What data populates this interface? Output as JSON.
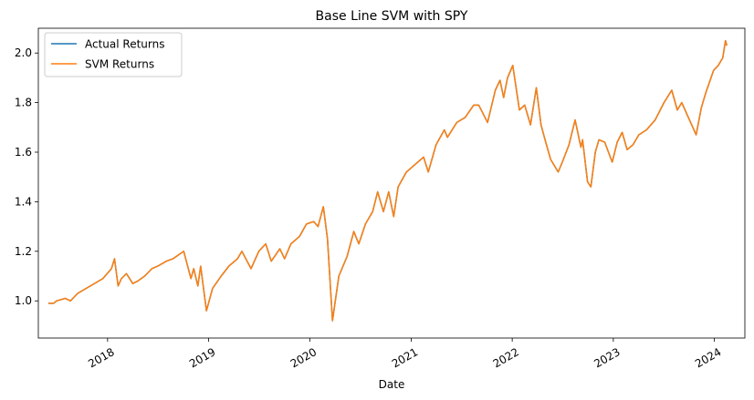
{
  "chart_data": {
    "type": "line",
    "title": "Base Line SVM with SPY",
    "xlabel": "Date",
    "ylabel": "",
    "xlim": [
      "2017-04-26",
      "2024-04-20"
    ],
    "ylim": [
      0.85,
      2.1
    ],
    "x_ticks": [
      {
        "date": "2018-01-01",
        "label": "2018"
      },
      {
        "date": "2019-01-01",
        "label": "2019"
      },
      {
        "date": "2020-01-01",
        "label": "2020"
      },
      {
        "date": "2021-01-01",
        "label": "2021"
      },
      {
        "date": "2022-01-01",
        "label": "2022"
      },
      {
        "date": "2023-01-01",
        "label": "2023"
      },
      {
        "date": "2024-01-01",
        "label": "2024"
      }
    ],
    "y_ticks": [
      {
        "value": 1.0,
        "label": "1.0"
      },
      {
        "value": 1.2,
        "label": "1.2"
      },
      {
        "value": 1.4,
        "label": "1.4"
      },
      {
        "value": 1.6,
        "label": "1.6"
      },
      {
        "value": 1.8,
        "label": "1.8"
      },
      {
        "value": 2.0,
        "label": "2.0"
      }
    ],
    "grid": false,
    "legend_position": "upper-left",
    "series": [
      {
        "name": "Actual Returns",
        "color": "#1f77b4",
        "x": [
          "2017-06-01",
          "2017-06-20",
          "2017-07-01",
          "2017-08-01",
          "2017-08-20",
          "2017-09-15",
          "2017-10-15",
          "2017-11-15",
          "2017-12-15",
          "2018-01-15",
          "2018-01-26",
          "2018-02-08",
          "2018-02-20",
          "2018-03-10",
          "2018-04-02",
          "2018-04-20",
          "2018-05-15",
          "2018-06-10",
          "2018-07-01",
          "2018-08-01",
          "2018-08-25",
          "2018-09-20",
          "2018-10-03",
          "2018-10-29",
          "2018-11-08",
          "2018-11-23",
          "2018-12-03",
          "2018-12-24",
          "2019-01-15",
          "2019-02-15",
          "2019-03-15",
          "2019-04-15",
          "2019-05-01",
          "2019-06-03",
          "2019-07-01",
          "2019-07-26",
          "2019-08-15",
          "2019-09-15",
          "2019-10-02",
          "2019-10-25",
          "2019-11-25",
          "2019-12-20",
          "2020-01-15",
          "2020-01-31",
          "2020-02-19",
          "2020-03-05",
          "2020-03-23",
          "2020-04-15",
          "2020-05-15",
          "2020-06-08",
          "2020-06-26",
          "2020-07-20",
          "2020-08-15",
          "2020-09-02",
          "2020-09-23",
          "2020-10-12",
          "2020-10-30",
          "2020-11-15",
          "2020-12-15",
          "2021-01-15",
          "2021-02-15",
          "2021-03-04",
          "2021-04-01",
          "2021-05-01",
          "2021-05-12",
          "2021-06-15",
          "2021-07-15",
          "2021-08-15",
          "2021-09-02",
          "2021-10-04",
          "2021-11-01",
          "2021-11-18",
          "2021-12-01",
          "2021-12-15",
          "2022-01-03",
          "2022-01-27",
          "2022-02-15",
          "2022-03-08",
          "2022-03-29",
          "2022-04-15",
          "2022-05-02",
          "2022-05-20",
          "2022-06-16",
          "2022-07-01",
          "2022-07-25",
          "2022-08-16",
          "2022-09-06",
          "2022-09-12",
          "2022-09-30",
          "2022-10-12",
          "2022-10-28",
          "2022-11-10",
          "2022-12-01",
          "2022-12-28",
          "2023-01-15",
          "2023-02-02",
          "2023-02-20",
          "2023-03-13",
          "2023-04-03",
          "2023-05-01",
          "2023-06-01",
          "2023-07-03",
          "2023-07-31",
          "2023-08-20",
          "2023-09-05",
          "2023-10-27",
          "2023-11-15",
          "2023-12-01",
          "2023-12-29",
          "2024-01-15",
          "2024-01-31",
          "2024-02-10",
          "2024-02-15"
        ],
        "y": [
          0.99,
          0.99,
          1.0,
          1.01,
          1.0,
          1.03,
          1.05,
          1.07,
          1.09,
          1.13,
          1.17,
          1.06,
          1.09,
          1.11,
          1.07,
          1.08,
          1.1,
          1.13,
          1.14,
          1.16,
          1.17,
          1.19,
          1.2,
          1.09,
          1.13,
          1.06,
          1.14,
          0.96,
          1.05,
          1.1,
          1.14,
          1.17,
          1.2,
          1.13,
          1.2,
          1.23,
          1.16,
          1.21,
          1.17,
          1.23,
          1.26,
          1.31,
          1.32,
          1.3,
          1.38,
          1.25,
          0.92,
          1.1,
          1.18,
          1.28,
          1.23,
          1.31,
          1.36,
          1.44,
          1.36,
          1.44,
          1.34,
          1.46,
          1.52,
          1.55,
          1.58,
          1.52,
          1.63,
          1.69,
          1.66,
          1.72,
          1.74,
          1.79,
          1.79,
          1.72,
          1.85,
          1.89,
          1.82,
          1.9,
          1.95,
          1.77,
          1.79,
          1.71,
          1.86,
          1.71,
          1.64,
          1.57,
          1.52,
          1.56,
          1.63,
          1.73,
          1.62,
          1.65,
          1.48,
          1.46,
          1.6,
          1.65,
          1.64,
          1.56,
          1.64,
          1.68,
          1.61,
          1.63,
          1.67,
          1.69,
          1.73,
          1.8,
          1.85,
          1.77,
          1.8,
          1.67,
          1.78,
          1.84,
          1.93,
          1.95,
          1.98,
          2.05,
          2.03
        ]
      },
      {
        "name": "SVM Returns",
        "color": "#ff7f0e",
        "x": [
          "2017-06-01",
          "2017-06-20",
          "2017-07-01",
          "2017-08-01",
          "2017-08-20",
          "2017-09-15",
          "2017-10-15",
          "2017-11-15",
          "2017-12-15",
          "2018-01-15",
          "2018-01-26",
          "2018-02-08",
          "2018-02-20",
          "2018-03-10",
          "2018-04-02",
          "2018-04-20",
          "2018-05-15",
          "2018-06-10",
          "2018-07-01",
          "2018-08-01",
          "2018-08-25",
          "2018-09-20",
          "2018-10-03",
          "2018-10-29",
          "2018-11-08",
          "2018-11-23",
          "2018-12-03",
          "2018-12-24",
          "2019-01-15",
          "2019-02-15",
          "2019-03-15",
          "2019-04-15",
          "2019-05-01",
          "2019-06-03",
          "2019-07-01",
          "2019-07-26",
          "2019-08-15",
          "2019-09-15",
          "2019-10-02",
          "2019-10-25",
          "2019-11-25",
          "2019-12-20",
          "2020-01-15",
          "2020-01-31",
          "2020-02-19",
          "2020-03-05",
          "2020-03-23",
          "2020-04-15",
          "2020-05-15",
          "2020-06-08",
          "2020-06-26",
          "2020-07-20",
          "2020-08-15",
          "2020-09-02",
          "2020-09-23",
          "2020-10-12",
          "2020-10-30",
          "2020-11-15",
          "2020-12-15",
          "2021-01-15",
          "2021-02-15",
          "2021-03-04",
          "2021-04-01",
          "2021-05-01",
          "2021-05-12",
          "2021-06-15",
          "2021-07-15",
          "2021-08-15",
          "2021-09-02",
          "2021-10-04",
          "2021-11-01",
          "2021-11-18",
          "2021-12-01",
          "2021-12-15",
          "2022-01-03",
          "2022-01-27",
          "2022-02-15",
          "2022-03-08",
          "2022-03-29",
          "2022-04-15",
          "2022-05-02",
          "2022-05-20",
          "2022-06-16",
          "2022-07-01",
          "2022-07-25",
          "2022-08-16",
          "2022-09-06",
          "2022-09-12",
          "2022-09-30",
          "2022-10-12",
          "2022-10-28",
          "2022-11-10",
          "2022-12-01",
          "2022-12-28",
          "2023-01-15",
          "2023-02-02",
          "2023-02-20",
          "2023-03-13",
          "2023-04-03",
          "2023-05-01",
          "2023-06-01",
          "2023-07-03",
          "2023-07-31",
          "2023-08-20",
          "2023-09-05",
          "2023-10-27",
          "2023-11-15",
          "2023-12-01",
          "2023-12-29",
          "2024-01-15",
          "2024-01-31",
          "2024-02-10",
          "2024-02-15"
        ],
        "y": [
          0.99,
          0.99,
          1.0,
          1.01,
          1.0,
          1.03,
          1.05,
          1.07,
          1.09,
          1.13,
          1.17,
          1.06,
          1.09,
          1.11,
          1.07,
          1.08,
          1.1,
          1.13,
          1.14,
          1.16,
          1.17,
          1.19,
          1.2,
          1.09,
          1.13,
          1.06,
          1.14,
          0.96,
          1.05,
          1.1,
          1.14,
          1.17,
          1.2,
          1.13,
          1.2,
          1.23,
          1.16,
          1.21,
          1.17,
          1.23,
          1.26,
          1.31,
          1.32,
          1.3,
          1.38,
          1.25,
          0.92,
          1.1,
          1.18,
          1.28,
          1.23,
          1.31,
          1.36,
          1.44,
          1.36,
          1.44,
          1.34,
          1.46,
          1.52,
          1.55,
          1.58,
          1.52,
          1.63,
          1.69,
          1.66,
          1.72,
          1.74,
          1.79,
          1.79,
          1.72,
          1.85,
          1.89,
          1.82,
          1.9,
          1.95,
          1.77,
          1.79,
          1.71,
          1.86,
          1.71,
          1.64,
          1.57,
          1.52,
          1.56,
          1.63,
          1.73,
          1.62,
          1.65,
          1.48,
          1.46,
          1.6,
          1.65,
          1.64,
          1.56,
          1.64,
          1.68,
          1.61,
          1.63,
          1.67,
          1.69,
          1.73,
          1.8,
          1.85,
          1.77,
          1.8,
          1.67,
          1.78,
          1.84,
          1.93,
          1.95,
          1.98,
          2.05,
          2.03
        ]
      }
    ]
  }
}
